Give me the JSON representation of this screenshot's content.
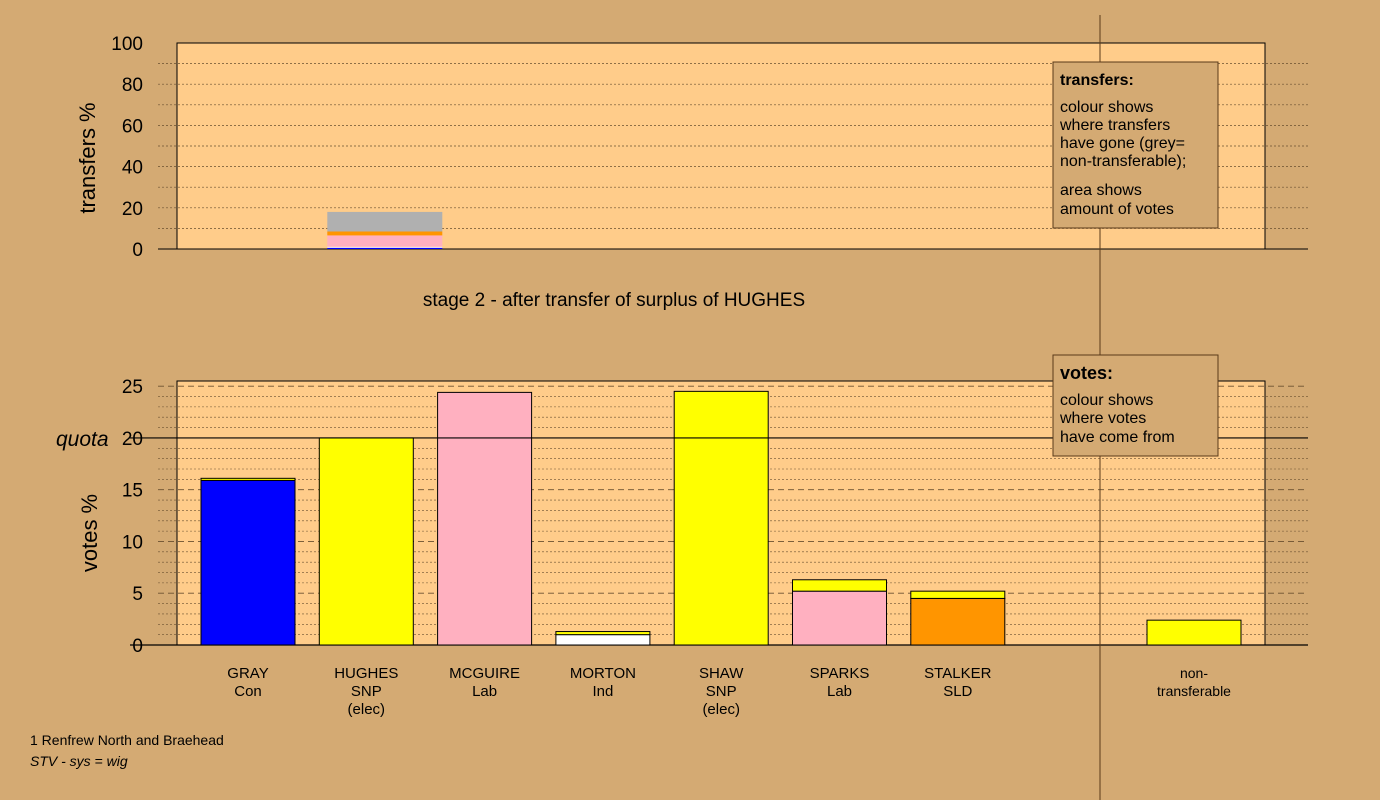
{
  "colors": {
    "background": "#d4aa73",
    "plot_area": "#ffcc8a",
    "blue": "#0000ff",
    "yellow": "#ffff00",
    "pink": "#ffb0c0",
    "white": "#ffffff",
    "orange": "#ff9500",
    "grey": "#b0b0b0"
  },
  "stage_title": "stage 2 - after transfer of surplus of HUGHES",
  "transfers_legend": {
    "title": "transfers:",
    "lines": [
      "colour shows",
      "where transfers",
      "have gone (grey=",
      "non-transferable);"
    ],
    "lines2": [
      "area shows",
      "amount of votes"
    ]
  },
  "votes_legend": {
    "title": "votes:",
    "lines": [
      "colour shows",
      "where votes",
      "have come from"
    ]
  },
  "footer": {
    "line1": "1 Renfrew North and Braehead",
    "line2": "STV - sys = wig"
  },
  "chart_data": [
    {
      "type": "bar",
      "ylabel": "transfers %",
      "ylim": [
        0,
        100
      ],
      "yticks": [
        "0",
        "20",
        "40",
        "60",
        "80",
        "100"
      ],
      "bars": [
        {
          "candidate_index": 1,
          "segments": [
            {
              "color": "blue",
              "value": 0.6
            },
            {
              "color": "white",
              "value": 0.5
            },
            {
              "color": "pink",
              "value": 5.5
            },
            {
              "color": "orange",
              "value": 1.9
            },
            {
              "color": "grey",
              "value": 9.5
            }
          ]
        }
      ]
    },
    {
      "type": "bar",
      "ylabel": "votes %",
      "ylim": [
        0,
        25.5
      ],
      "yticks": [
        "0",
        "5",
        "10",
        "15",
        "20",
        "25"
      ],
      "quota_label": "quota",
      "quota": 20,
      "categories": [
        {
          "name": "GRAY",
          "party": "Con",
          "note": ""
        },
        {
          "name": "HUGHES",
          "party": "SNP",
          "note": "(elec)"
        },
        {
          "name": "MCGUIRE",
          "party": "Lab",
          "note": ""
        },
        {
          "name": "MORTON",
          "party": "Ind",
          "note": ""
        },
        {
          "name": "SHAW",
          "party": "SNP",
          "note": "(elec)"
        },
        {
          "name": "SPARKS",
          "party": "Lab",
          "note": ""
        },
        {
          "name": "STALKER",
          "party": "SLD",
          "note": ""
        }
      ],
      "nontransferable_label": [
        "non-",
        "transferable"
      ],
      "bars": [
        {
          "segments": [
            {
              "color": "blue",
              "value": 15.9
            },
            {
              "color": "yellow",
              "value": 0.2
            }
          ]
        },
        {
          "segments": [
            {
              "color": "yellow",
              "value": 20.0
            }
          ]
        },
        {
          "segments": [
            {
              "color": "pink",
              "value": 24.4
            }
          ]
        },
        {
          "segments": [
            {
              "color": "white",
              "value": 1.0
            },
            {
              "color": "yellow",
              "value": 0.3
            }
          ]
        },
        {
          "segments": [
            {
              "color": "yellow",
              "value": 24.5
            }
          ]
        },
        {
          "segments": [
            {
              "color": "pink",
              "value": 5.2
            },
            {
              "color": "yellow",
              "value": 1.1
            }
          ]
        },
        {
          "segments": [
            {
              "color": "orange",
              "value": 4.5
            },
            {
              "color": "yellow",
              "value": 0.7
            }
          ]
        }
      ],
      "nontransferable": {
        "segments": [
          {
            "color": "yellow",
            "value": 2.4
          }
        ]
      }
    }
  ]
}
